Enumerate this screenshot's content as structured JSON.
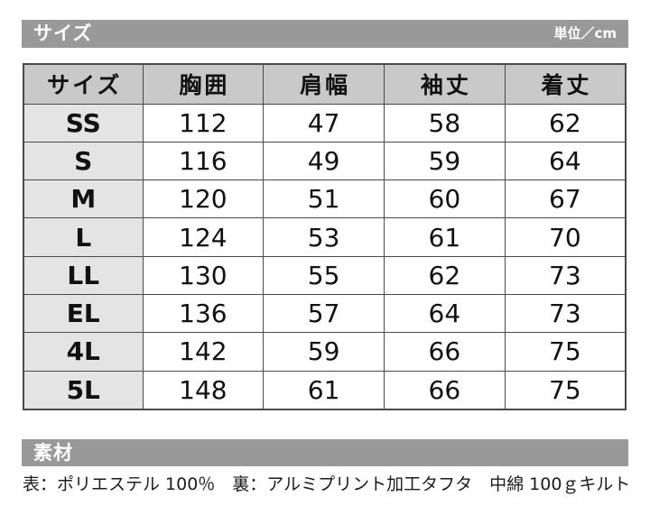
{
  "section_size": {
    "bar_title": "サイズ",
    "bar_unit": "単位／cm"
  },
  "section_material": {
    "bar_title": "素材",
    "description": "表：ポリエステル 100％　裏：アルミプリント加工タフタ　中綿 100ｇキルト"
  },
  "colors": {
    "section_bar_bg": "#999999",
    "section_bar_text": "#ffffff",
    "table_header_bg": "#c9c9c9",
    "size_column_bg": "#e4e4e4",
    "cell_bg": "#ffffff",
    "table_border": "#4a4a4a",
    "text": "#111111"
  },
  "chart_data": {
    "type": "table",
    "title": "サイズ",
    "unit_label": "単位／cm",
    "columns": [
      "サイズ",
      "胸囲",
      "肩幅",
      "袖丈",
      "着丈"
    ],
    "rows": [
      {
        "size": "SS",
        "values": [
          112,
          47,
          58,
          62
        ]
      },
      {
        "size": "S",
        "values": [
          116,
          49,
          59,
          64
        ]
      },
      {
        "size": "M",
        "values": [
          120,
          51,
          60,
          67
        ]
      },
      {
        "size": "L",
        "values": [
          124,
          53,
          61,
          70
        ]
      },
      {
        "size": "LL",
        "values": [
          130,
          55,
          62,
          73
        ]
      },
      {
        "size": "EL",
        "values": [
          136,
          57,
          64,
          73
        ]
      },
      {
        "size": "4L",
        "values": [
          142,
          59,
          66,
          75
        ]
      },
      {
        "size": "5L",
        "values": [
          148,
          61,
          66,
          75
        ]
      }
    ]
  }
}
